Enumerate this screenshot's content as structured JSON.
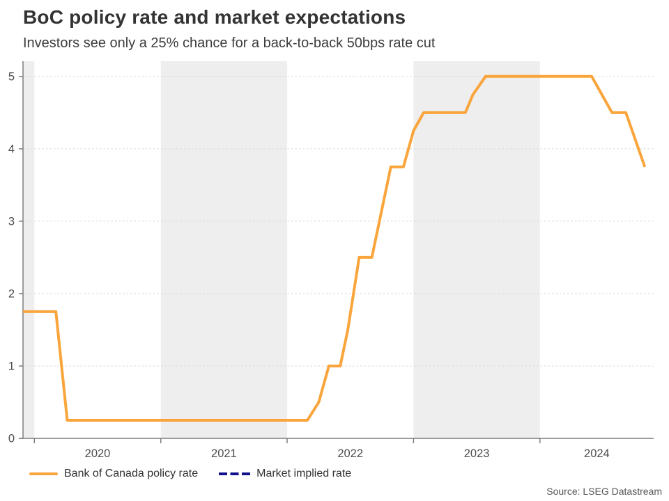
{
  "header": {
    "title": "BoC policy rate and market expectations",
    "subtitle": "Investors see only a 25% chance for a back-to-back 50bps rate cut"
  },
  "footer": {
    "source": "Source: LSEG Datastream"
  },
  "legend": {
    "position": "bottom-left",
    "items": [
      {
        "label": "Bank of Canada policy rate",
        "color": "#FAA53C",
        "line_style": "solid"
      },
      {
        "label": "Market implied rate",
        "color": "#12128C",
        "line_style": "dashed"
      }
    ]
  },
  "colors": {
    "policy_rate_line": "#FAA53C",
    "market_implied_line": "#12128C",
    "year_band": "#EEEEEE",
    "gridline": "#D8D8D8",
    "axis": "#7D7D7D",
    "tick_label": "#4D4D4D",
    "background": "#FFFFFF"
  },
  "chart_data": {
    "type": "line",
    "title": "BoC policy rate and market expectations",
    "subtitle": "Investors see only a 25% chance for a back-to-back 50bps rate cut",
    "xlabel": "",
    "ylabel": "",
    "xlim": [
      2019.91,
      2024.9
    ],
    "ylim": [
      0,
      5.21
    ],
    "y_ticks": [
      0,
      1,
      2,
      3,
      4,
      5
    ],
    "x_tick_labels": [
      "2020",
      "2021",
      "2022",
      "2023",
      "2024"
    ],
    "x_tick_style": "ticks at year boundaries, labels centered within each year",
    "grid": "horizontal dashed gridlines at integer values",
    "shaded_year_bands": [
      [
        2019.91,
        2020
      ],
      [
        2021,
        2022
      ],
      [
        2023,
        2024
      ]
    ],
    "legend_position": "bottom-left",
    "series": [
      {
        "name": "Bank of Canada policy rate",
        "color": "#FAA53C",
        "style": "solid",
        "unit": "percent",
        "points": [
          [
            2019.91,
            1.75
          ],
          [
            2020.17,
            1.75
          ],
          [
            2020.26,
            0.25
          ],
          [
            2022.16,
            0.25
          ],
          [
            2022.25,
            0.5
          ],
          [
            2022.33,
            1.0
          ],
          [
            2022.42,
            1.0
          ],
          [
            2022.48,
            1.5
          ],
          [
            2022.57,
            2.5
          ],
          [
            2022.67,
            2.5
          ],
          [
            2022.76,
            3.25
          ],
          [
            2022.82,
            3.75
          ],
          [
            2022.92,
            3.75
          ],
          [
            2023.0,
            4.25
          ],
          [
            2023.08,
            4.5
          ],
          [
            2023.41,
            4.5
          ],
          [
            2023.47,
            4.75
          ],
          [
            2023.57,
            5.0
          ],
          [
            2024.41,
            5.0
          ],
          [
            2024.57,
            4.5
          ],
          [
            2024.68,
            4.5
          ],
          [
            2024.73,
            4.25
          ],
          [
            2024.83,
            3.75
          ]
        ]
      },
      {
        "name": "Market implied rate",
        "color": "#12128C",
        "style": "dashed",
        "unit": "percent",
        "points": [],
        "visible_in_plot": false
      }
    ]
  }
}
